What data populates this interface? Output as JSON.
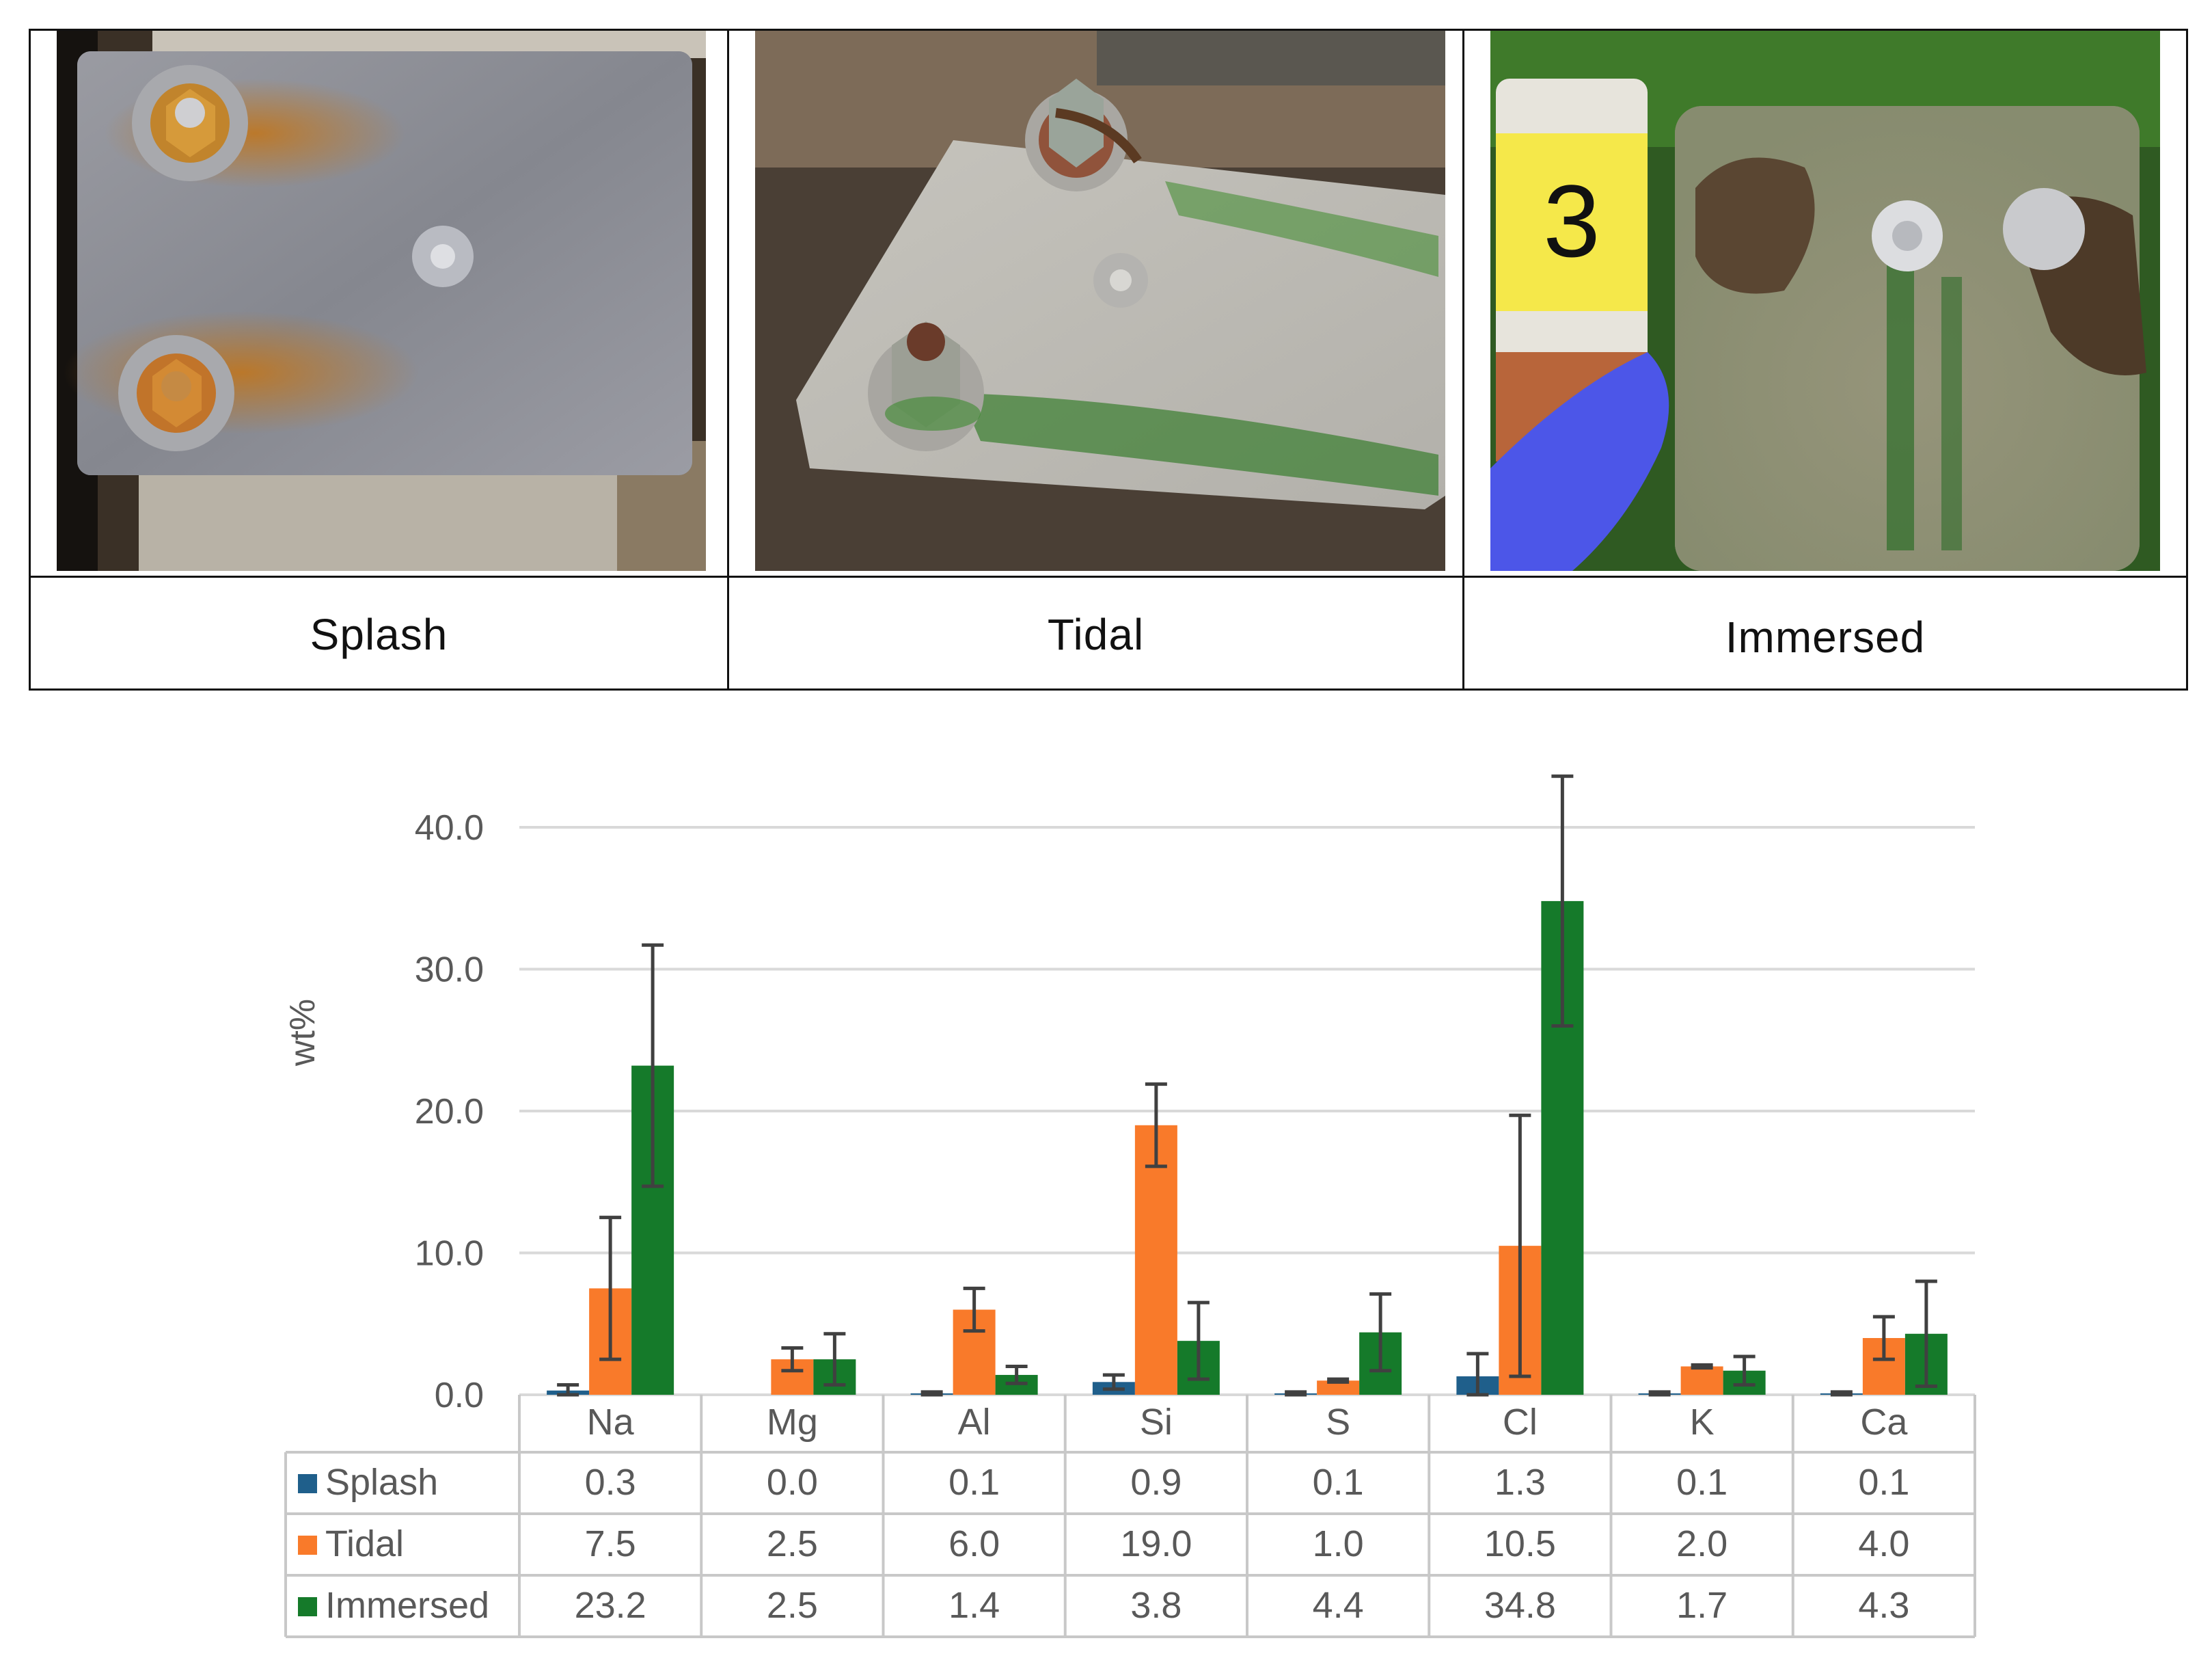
{
  "photo_panels": [
    {
      "label": "Splash"
    },
    {
      "label": "Tidal"
    },
    {
      "label": "Immersed",
      "vial_label": "3"
    }
  ],
  "colors": {
    "splash": "#1f5f8b",
    "tidal": "#f97a2a",
    "immersed": "#157a2a",
    "gridline": "#d9d9d9",
    "error_bar": "#404040"
  },
  "chart_data": {
    "type": "bar",
    "ylabel": "wt%",
    "ylim": [
      0,
      40
    ],
    "yticks": [
      "0.0",
      "10.0",
      "20.0",
      "30.0",
      "40.0"
    ],
    "categories": [
      "Na",
      "Mg",
      "Al",
      "Si",
      "S",
      "Cl",
      "K",
      "Ca"
    ],
    "series": [
      {
        "name": "Splash",
        "key": "splash",
        "values": [
          0.3,
          0.0,
          0.1,
          0.9,
          0.1,
          1.3,
          0.1,
          0.1
        ],
        "labels": [
          "0.3",
          "0.0",
          "0.1",
          "0.9",
          "0.1",
          "1.3",
          "0.1",
          "0.1"
        ],
        "errors": [
          0.4,
          0.0,
          0.1,
          0.5,
          0.1,
          1.6,
          0.1,
          0.1
        ]
      },
      {
        "name": "Tidal",
        "key": "tidal",
        "values": [
          7.5,
          2.5,
          6.0,
          19.0,
          1.0,
          10.5,
          2.0,
          4.0
        ],
        "labels": [
          "7.5",
          "2.5",
          "6.0",
          "19.0",
          "1.0",
          "10.5",
          "2.0",
          "4.0"
        ],
        "errors": [
          5.0,
          0.8,
          1.5,
          2.9,
          0.1,
          9.2,
          0.1,
          1.5
        ]
      },
      {
        "name": "Immersed",
        "key": "immersed",
        "values": [
          23.2,
          2.5,
          1.4,
          3.8,
          4.4,
          34.8,
          1.7,
          4.3
        ],
        "labels": [
          "23.2",
          "2.5",
          "1.4",
          "3.8",
          "4.4",
          "34.8",
          "1.7",
          "4.3"
        ],
        "errors": [
          8.5,
          1.8,
          0.6,
          2.7,
          2.7,
          8.8,
          1.0,
          3.7
        ]
      }
    ],
    "grid": true,
    "legend": "data-table"
  }
}
